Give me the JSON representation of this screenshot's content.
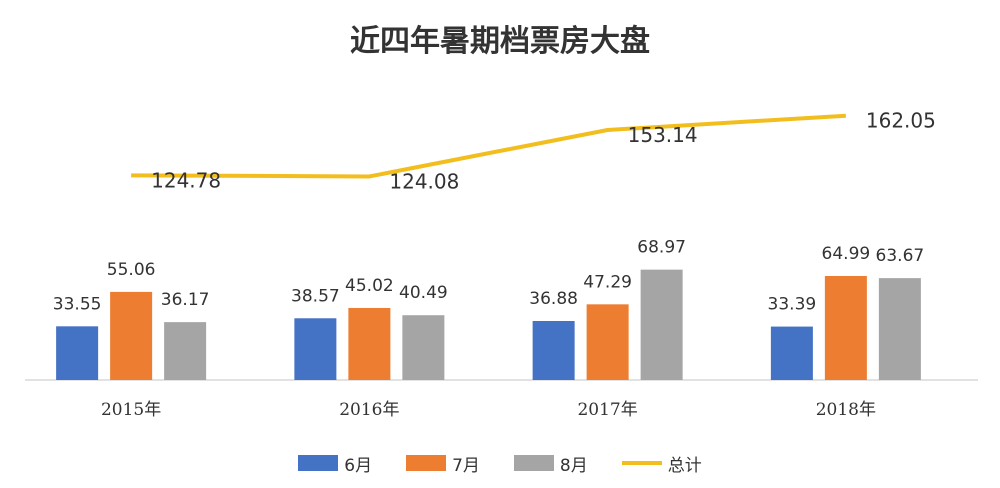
{
  "chart_data": {
    "type": "bar",
    "title": "近四年暑期档票房大盘",
    "categories": [
      "2015年",
      "2016年",
      "2017年",
      "2018年"
    ],
    "series": [
      {
        "name": "6月",
        "type": "bar",
        "color": "#4472C4",
        "values": [
          33.55,
          38.57,
          36.88,
          33.39
        ]
      },
      {
        "name": "7月",
        "type": "bar",
        "color": "#ED7D31",
        "values": [
          55.06,
          45.02,
          47.29,
          64.99
        ]
      },
      {
        "name": "8月",
        "type": "bar",
        "color": "#A5A5A5",
        "values": [
          36.17,
          40.49,
          68.97,
          63.67
        ]
      },
      {
        "name": "总计",
        "type": "line",
        "color": "#F2BE1E",
        "values": [
          124.78,
          124.08,
          153.14,
          162.05
        ]
      }
    ],
    "data_labels": true,
    "legend": "bottom",
    "grid": false
  }
}
